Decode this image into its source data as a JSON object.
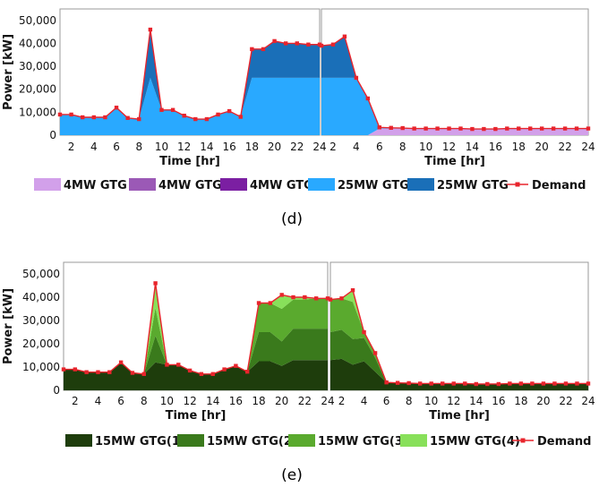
{
  "figure": {
    "panel_labels": [
      "(d)",
      "(e)"
    ]
  },
  "chart_data": [
    {
      "type": "area",
      "panel": "(d)",
      "xlabel": "Time [hr]",
      "ylabel": "Power [kW]",
      "ylim": [
        0,
        55000
      ],
      "yticks": [
        "0",
        "10,000",
        "20,000",
        "30,000",
        "40,000",
        "50,000"
      ],
      "ytick_values": [
        0,
        10000,
        20000,
        30000,
        40000,
        50000
      ],
      "xticks": [
        "2",
        "4",
        "6",
        "8",
        "10",
        "12",
        "14",
        "16",
        "18",
        "20",
        "22",
        "24"
      ],
      "grid": false,
      "legend_position": "bottom",
      "sub_panels": 2,
      "series": [
        {
          "name": "4MW GTG",
          "color": "#d2a0ea",
          "left": [
            0,
            0,
            0,
            0,
            0,
            0,
            0,
            0,
            0,
            0,
            0,
            0,
            0,
            0,
            0,
            0,
            0,
            0,
            0,
            0,
            0,
            0,
            0,
            0
          ],
          "right": [
            0,
            0,
            0,
            0,
            0,
            2900,
            2900,
            2900,
            2700,
            2700,
            2700,
            2700,
            2700,
            2500,
            2500,
            2500,
            2700,
            2700,
            2700,
            2700,
            2700,
            2700,
            2700,
            2700
          ]
        },
        {
          "name": "4MW GTG",
          "color": "#9b59b6",
          "left": [
            0,
            0,
            0,
            0,
            0,
            0,
            0,
            0,
            0,
            0,
            0,
            0,
            0,
            0,
            0,
            0,
            0,
            0,
            0,
            0,
            0,
            0,
            0,
            0
          ],
          "right": [
            0,
            0,
            0,
            0,
            0,
            0,
            0,
            0,
            0,
            0,
            0,
            0,
            0,
            0,
            0,
            0,
            0,
            0,
            0,
            0,
            0,
            0,
            0,
            0
          ]
        },
        {
          "name": "4MW GTG",
          "color": "#7b1fa2",
          "left": [
            0,
            0,
            0,
            0,
            0,
            0,
            0,
            0,
            0,
            0,
            0,
            0,
            0,
            0,
            0,
            0,
            0,
            0,
            0,
            0,
            0,
            0,
            0,
            0
          ],
          "right": [
            0,
            0,
            0,
            0,
            0,
            0,
            0,
            0,
            0,
            0,
            0,
            0,
            0,
            0,
            0,
            0,
            0,
            0,
            0,
            0,
            0,
            0,
            0,
            0
          ]
        },
        {
          "name": "25MW GTG",
          "color": "#29a9ff",
          "left": [
            9000,
            9000,
            7800,
            7800,
            7800,
            12000,
            7500,
            7000,
            25000,
            11000,
            11000,
            8500,
            7000,
            7000,
            9000,
            10500,
            8000,
            25000,
            25000,
            25000,
            25000,
            25000,
            25000,
            25000
          ],
          "right": [
            25000,
            25000,
            25000,
            25000,
            16000,
            500,
            300,
            200,
            200,
            200,
            200,
            200,
            200,
            200,
            200,
            200,
            200,
            200,
            200,
            200,
            200,
            200,
            200,
            200
          ]
        },
        {
          "name": "25MW GTG",
          "color": "#1a6fb8",
          "left": [
            0,
            0,
            0,
            0,
            0,
            0,
            0,
            0,
            21000,
            0,
            0,
            0,
            0,
            0,
            0,
            0,
            0,
            12500,
            12500,
            16000,
            15000,
            15000,
            14500,
            14500
          ],
          "right": [
            14000,
            14500,
            18000,
            0,
            0,
            0,
            0,
            0,
            0,
            0,
            0,
            0,
            0,
            0,
            0,
            0,
            0,
            0,
            0,
            0,
            0,
            0,
            0,
            0
          ]
        }
      ],
      "demand": {
        "name": "Demand",
        "left": [
          9000,
          9000,
          7800,
          7800,
          7800,
          12000,
          7500,
          7000,
          46000,
          11000,
          11000,
          8500,
          7000,
          7000,
          9000,
          10500,
          8000,
          37500,
          37500,
          41000,
          40000,
          40000,
          39500,
          39500
        ],
        "right": [
          39000,
          39500,
          43000,
          25000,
          16000,
          3400,
          3200,
          3100,
          2900,
          2900,
          2900,
          2900,
          2900,
          2700,
          2700,
          2700,
          2900,
          2900,
          2900,
          2900,
          2900,
          2900,
          2900,
          2900
        ]
      }
    },
    {
      "type": "area",
      "panel": "(e)",
      "xlabel": "Time [hr]",
      "ylabel": "Power [kW]",
      "ylim": [
        0,
        55000
      ],
      "yticks": [
        "0",
        "10,000",
        "20,000",
        "30,000",
        "40,000",
        "50,000"
      ],
      "ytick_values": [
        0,
        10000,
        20000,
        30000,
        40000,
        50000
      ],
      "xticks": [
        "2",
        "4",
        "6",
        "8",
        "10",
        "12",
        "14",
        "16",
        "18",
        "20",
        "22",
        "24"
      ],
      "grid": false,
      "legend_position": "bottom",
      "sub_panels": 2,
      "series": [
        {
          "name": "15MW GTG(1)",
          "color": "#1e3d0c",
          "left": [
            9000,
            9000,
            7800,
            7800,
            7800,
            12000,
            7500,
            7000,
            12000,
            11000,
            11000,
            8500,
            7000,
            7000,
            9000,
            10500,
            8000,
            12500,
            12500,
            10500,
            13000,
            13000,
            13000,
            13000
          ],
          "right": [
            13000,
            13500,
            11000,
            12500,
            8000,
            3400,
            3200,
            3100,
            2900,
            2900,
            2900,
            2900,
            2900,
            2700,
            2700,
            2700,
            2900,
            2900,
            2900,
            2900,
            2900,
            2900,
            2900,
            2900
          ]
        },
        {
          "name": "15MW GTG(2)",
          "color": "#3a7a1c",
          "left": [
            0,
            0,
            0,
            0,
            0,
            0,
            0,
            0,
            11500,
            0,
            0,
            0,
            0,
            0,
            0,
            0,
            0,
            12500,
            12500,
            10500,
            13500,
            13500,
            13500,
            13500
          ],
          "right": [
            12000,
            12500,
            11000,
            10000,
            6000,
            0,
            0,
            0,
            0,
            0,
            0,
            0,
            0,
            0,
            0,
            0,
            0,
            0,
            0,
            0,
            0,
            0,
            0,
            0
          ]
        },
        {
          "name": "15MW GTG(3)",
          "color": "#5aaa2e",
          "left": [
            0,
            0,
            0,
            0,
            0,
            0,
            0,
            0,
            12000,
            0,
            0,
            0,
            0,
            0,
            0,
            0,
            0,
            12500,
            12500,
            14000,
            12500,
            12500,
            13000,
            13000
          ],
          "right": [
            14000,
            13500,
            16000,
            2500,
            2000,
            0,
            0,
            0,
            0,
            0,
            0,
            0,
            0,
            0,
            0,
            0,
            0,
            0,
            0,
            0,
            0,
            0,
            0,
            0
          ]
        },
        {
          "name": "15MW GTG(4)",
          "color": "#88e05a",
          "left": [
            0,
            0,
            0,
            0,
            0,
            0,
            0,
            0,
            10500,
            0,
            0,
            0,
            0,
            0,
            0,
            0,
            0,
            0,
            0,
            6000,
            1000,
            1000,
            0,
            0
          ],
          "right": [
            0,
            0,
            5000,
            0,
            0,
            0,
            0,
            0,
            0,
            0,
            0,
            0,
            0,
            0,
            0,
            0,
            0,
            0,
            0,
            0,
            0,
            0,
            0,
            0
          ]
        }
      ],
      "demand": {
        "name": "Demand",
        "left": [
          9000,
          9000,
          7800,
          7800,
          7800,
          12000,
          7500,
          7000,
          46000,
          11000,
          11000,
          8500,
          7000,
          7000,
          9000,
          10500,
          8000,
          37500,
          37500,
          41000,
          40000,
          40000,
          39500,
          39500
        ],
        "right": [
          39000,
          39500,
          43000,
          25000,
          16000,
          3400,
          3200,
          3100,
          2900,
          2900,
          2900,
          2900,
          2900,
          2700,
          2700,
          2700,
          2900,
          2900,
          2900,
          2900,
          2900,
          2900,
          2900,
          2900
        ]
      }
    }
  ]
}
